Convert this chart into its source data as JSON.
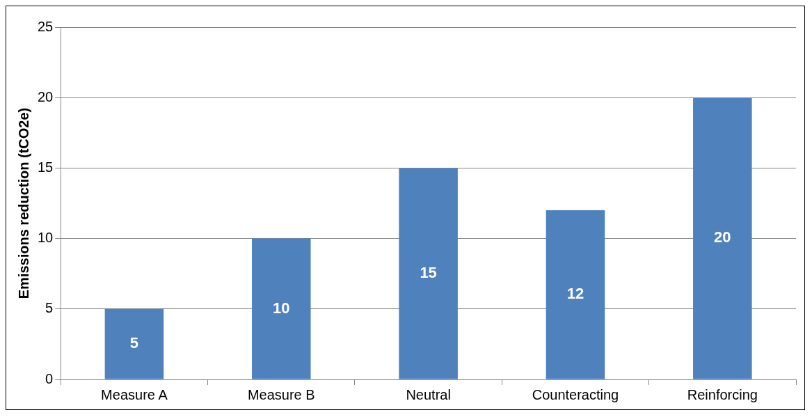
{
  "chart_data": {
    "type": "bar",
    "ylabel": "Emissions reduction (tCO2e)",
    "categories": [
      "Measure A",
      "Measure B",
      "Neutral",
      "Counteracting",
      "Reinforcing"
    ],
    "values": [
      5,
      10,
      15,
      12,
      20
    ],
    "color": "#4f81bd",
    "ylim": [
      0,
      25
    ],
    "yticks": [
      0,
      5,
      10,
      15,
      20,
      25
    ],
    "grid": "y",
    "data_labels": true,
    "legend": false
  }
}
